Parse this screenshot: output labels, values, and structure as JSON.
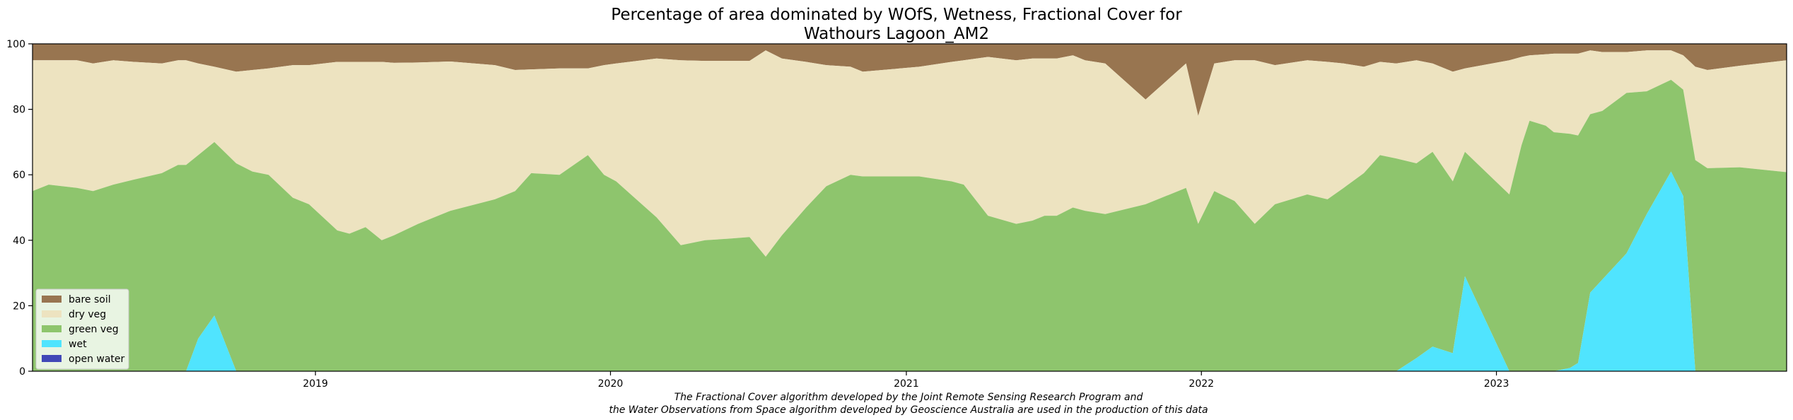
{
  "chart_data": {
    "type": "area",
    "stacked": true,
    "title_lines": [
      "Percentage of area dominated by WOfS, Wetness, Fractional Cover for",
      "Wathours Lagoon_AM2"
    ],
    "xlabel": "",
    "ylabel": "",
    "ylim": [
      0,
      100
    ],
    "xlim": [
      "2018-01-16",
      "2023-12-26"
    ],
    "y_ticks": [
      "0",
      "20",
      "40",
      "60",
      "80",
      "100"
    ],
    "x_ticks": [
      {
        "label": "2019",
        "date": "2019-01-01"
      },
      {
        "label": "2020",
        "date": "2020-01-01"
      },
      {
        "label": "2021",
        "date": "2021-01-01"
      },
      {
        "label": "2022",
        "date": "2022-01-01"
      },
      {
        "label": "2023",
        "date": "2023-01-01"
      }
    ],
    "legend_position": "lower-left",
    "caption_lines": [
      "The Fractional Cover algorithm developed by the Joint Remote Sensing Research Program and",
      "the Water Observations from Space algorithm developed by Geoscience Australia are used in the production of this data"
    ],
    "series": [
      {
        "name": "bare soil",
        "color": "#987550"
      },
      {
        "name": "dry veg",
        "color": "#ede3c0"
      },
      {
        "name": "green veg",
        "color": "#8ec56d"
      },
      {
        "name": "wet",
        "color": "#50e4fe"
      },
      {
        "name": "open water",
        "color": "#4148b7"
      }
    ],
    "points": [
      {
        "date": "2018-01-16",
        "wet": 0,
        "green": 55,
        "dry": 95
      },
      {
        "date": "2018-02-05",
        "wet": 0,
        "green": 57,
        "dry": 95
      },
      {
        "date": "2018-03-12",
        "wet": 0,
        "green": 56,
        "dry": 95
      },
      {
        "date": "2018-04-01",
        "wet": 0,
        "green": 55,
        "dry": 94
      },
      {
        "date": "2018-04-26",
        "wet": 0,
        "green": 57,
        "dry": 95
      },
      {
        "date": "2018-05-21",
        "wet": 0,
        "green": 58.5,
        "dry": 94.5
      },
      {
        "date": "2018-06-25",
        "wet": 0,
        "green": 60.5,
        "dry": 94
      },
      {
        "date": "2018-07-15",
        "wet": 0,
        "green": 63,
        "dry": 95
      },
      {
        "date": "2018-07-25",
        "wet": 0,
        "green": 63,
        "dry": 95
      },
      {
        "date": "2018-08-09",
        "wet": 10,
        "green": 66,
        "dry": 94
      },
      {
        "date": "2018-08-29",
        "wet": 17,
        "green": 70,
        "dry": 93
      },
      {
        "date": "2018-09-25",
        "wet": 0,
        "green": 63.5,
        "dry": 91.5
      },
      {
        "date": "2018-10-15",
        "wet": 0,
        "green": 61,
        "dry": 92
      },
      {
        "date": "2018-11-04",
        "wet": 0,
        "green": 60,
        "dry": 92.5
      },
      {
        "date": "2018-12-04",
        "wet": 0,
        "green": 53,
        "dry": 93.5
      },
      {
        "date": "2018-12-24",
        "wet": 0,
        "green": 51,
        "dry": 93.5
      },
      {
        "date": "2019-01-28",
        "wet": 0,
        "green": 43,
        "dry": 94.5
      },
      {
        "date": "2019-02-12",
        "wet": 0,
        "green": 42,
        "dry": 94.5
      },
      {
        "date": "2019-03-04",
        "wet": 0,
        "green": 44,
        "dry": 94.5
      },
      {
        "date": "2019-03-24",
        "wet": 0,
        "green": 40,
        "dry": 94.5
      },
      {
        "date": "2019-04-08",
        "wet": 0,
        "green": 41.5,
        "dry": 94.2
      },
      {
        "date": "2019-05-08",
        "wet": 0,
        "green": 45,
        "dry": 94.3
      },
      {
        "date": "2019-06-17",
        "wet": 0,
        "green": 49,
        "dry": 94.6
      },
      {
        "date": "2019-08-11",
        "wet": 0,
        "green": 52.5,
        "dry": 93.5
      },
      {
        "date": "2019-09-05",
        "wet": 0,
        "green": 55,
        "dry": 92
      },
      {
        "date": "2019-09-25",
        "wet": 0,
        "green": 60.5,
        "dry": 92.2
      },
      {
        "date": "2019-10-30",
        "wet": 0,
        "green": 60,
        "dry": 92.5
      },
      {
        "date": "2019-12-04",
        "wet": 0,
        "green": 66,
        "dry": 92.5
      },
      {
        "date": "2019-12-24",
        "wet": 0,
        "green": 60,
        "dry": 93.5
      },
      {
        "date": "2020-01-08",
        "wet": 0,
        "green": 58,
        "dry": 94
      },
      {
        "date": "2020-02-27",
        "wet": 0,
        "green": 47,
        "dry": 95.5
      },
      {
        "date": "2020-03-28",
        "wet": 0,
        "green": 38.5,
        "dry": 95
      },
      {
        "date": "2020-04-27",
        "wet": 0,
        "green": 40,
        "dry": 94.8
      },
      {
        "date": "2020-05-27",
        "wet": 0,
        "green": 40.5,
        "dry": 94.8
      },
      {
        "date": "2020-06-21",
        "wet": 0,
        "green": 41,
        "dry": 94.8
      },
      {
        "date": "2020-07-11",
        "wet": 0,
        "green": 35,
        "dry": 98
      },
      {
        "date": "2020-07-31",
        "wet": 0,
        "green": 41.5,
        "dry": 95.5
      },
      {
        "date": "2020-08-30",
        "wet": 0,
        "green": 50,
        "dry": 94.5
      },
      {
        "date": "2020-09-24",
        "wet": 0,
        "green": 56.5,
        "dry": 93.5
      },
      {
        "date": "2020-10-24",
        "wet": 0,
        "green": 60,
        "dry": 93
      },
      {
        "date": "2020-11-08",
        "wet": 0,
        "green": 59.5,
        "dry": 91.5
      },
      {
        "date": "2021-01-17",
        "wet": 0,
        "green": 59.5,
        "dry": 93
      },
      {
        "date": "2021-02-26",
        "wet": 0,
        "green": 58,
        "dry": 94.5
      },
      {
        "date": "2021-03-13",
        "wet": 0,
        "green": 57,
        "dry": 95
      },
      {
        "date": "2021-04-12",
        "wet": 0,
        "green": 47.5,
        "dry": 96
      },
      {
        "date": "2021-05-17",
        "wet": 0,
        "green": 45,
        "dry": 95
      },
      {
        "date": "2021-06-06",
        "wet": 0,
        "green": 46,
        "dry": 95.5
      },
      {
        "date": "2021-06-21",
        "wet": 0,
        "green": 47.5,
        "dry": 95.5
      },
      {
        "date": "2021-07-06",
        "wet": 0,
        "green": 47.5,
        "dry": 95.5
      },
      {
        "date": "2021-07-26",
        "wet": 0,
        "green": 50,
        "dry": 96.5
      },
      {
        "date": "2021-08-10",
        "wet": 0,
        "green": 49,
        "dry": 95
      },
      {
        "date": "2021-09-04",
        "wet": 0,
        "green": 48,
        "dry": 94
      },
      {
        "date": "2021-10-24",
        "wet": 0,
        "green": 51,
        "dry": 83
      },
      {
        "date": "2021-12-13",
        "wet": 0,
        "green": 56,
        "dry": 94
      },
      {
        "date": "2021-12-28",
        "wet": 0,
        "green": 45,
        "dry": 78
      },
      {
        "date": "2022-01-17",
        "wet": 0,
        "green": 55,
        "dry": 94
      },
      {
        "date": "2022-02-11",
        "wet": 0,
        "green": 52,
        "dry": 95
      },
      {
        "date": "2022-03-08",
        "wet": 0,
        "green": 45,
        "dry": 95
      },
      {
        "date": "2022-04-02",
        "wet": 0,
        "green": 51,
        "dry": 93.5
      },
      {
        "date": "2022-05-12",
        "wet": 0,
        "green": 54,
        "dry": 95
      },
      {
        "date": "2022-06-06",
        "wet": 0,
        "green": 52.5,
        "dry": 94.5
      },
      {
        "date": "2022-06-26",
        "wet": 0,
        "green": 56,
        "dry": 94
      },
      {
        "date": "2022-07-21",
        "wet": 0,
        "green": 60.5,
        "dry": 93
      },
      {
        "date": "2022-08-10",
        "wet": 0,
        "green": 66,
        "dry": 94.5
      },
      {
        "date": "2022-08-30",
        "wet": 0,
        "green": 65,
        "dry": 94
      },
      {
        "date": "2022-09-24",
        "wet": 4,
        "green": 63.5,
        "dry": 95
      },
      {
        "date": "2022-10-14",
        "wet": 7.5,
        "green": 67,
        "dry": 94
      },
      {
        "date": "2022-11-08",
        "wet": 5.5,
        "green": 58,
        "dry": 91.5
      },
      {
        "date": "2022-11-23",
        "wet": 29,
        "green": 67,
        "dry": 92.5
      },
      {
        "date": "2023-01-17",
        "wet": 0,
        "green": 54,
        "dry": 95
      },
      {
        "date": "2023-02-01",
        "wet": 0,
        "green": 69,
        "dry": 96
      },
      {
        "date": "2023-02-11",
        "wet": 0,
        "green": 76.5,
        "dry": 96.5
      },
      {
        "date": "2023-03-03",
        "wet": 0,
        "green": 75,
        "dry": 96.8
      },
      {
        "date": "2023-03-13",
        "wet": 0,
        "green": 73,
        "dry": 97
      },
      {
        "date": "2023-04-02",
        "wet": 1,
        "green": 72.5,
        "dry": 97
      },
      {
        "date": "2023-04-12",
        "wet": 2.5,
        "green": 72,
        "dry": 97
      },
      {
        "date": "2023-04-27",
        "wet": 24,
        "green": 78.5,
        "dry": 98
      },
      {
        "date": "2023-05-12",
        "wet": 28,
        "green": 79.5,
        "dry": 97.5
      },
      {
        "date": "2023-06-11",
        "wet": 36,
        "green": 85,
        "dry": 97.5
      },
      {
        "date": "2023-07-06",
        "wet": 48,
        "green": 85.5,
        "dry": 98
      },
      {
        "date": "2023-08-05",
        "wet": 61,
        "green": 89,
        "dry": 98
      },
      {
        "date": "2023-08-20",
        "wet": 53.5,
        "green": 86,
        "dry": 96.5
      },
      {
        "date": "2023-09-04",
        "wet": 0,
        "green": 64.5,
        "dry": 93
      },
      {
        "date": "2023-09-19",
        "wet": 0,
        "green": 62,
        "dry": 92
      },
      {
        "date": "2023-10-29",
        "wet": 0,
        "green": 62.3,
        "dry": 93.3
      },
      {
        "date": "2023-12-26",
        "wet": 0,
        "green": 60.8,
        "dry": 95
      }
    ]
  }
}
